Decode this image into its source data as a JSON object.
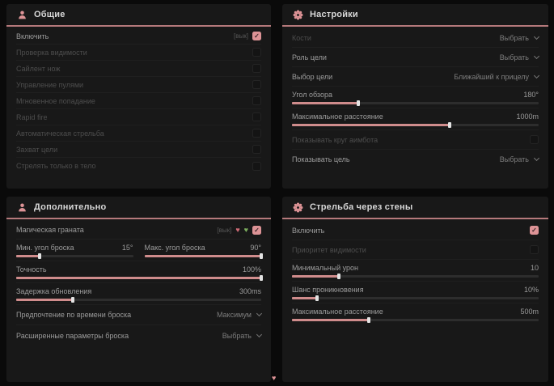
{
  "accent": "#dd9396",
  "general": {
    "title": "Общие",
    "rows": [
      {
        "label": "Включить",
        "keybind": "[вык]",
        "checked": true,
        "enabled": true
      },
      {
        "label": "Проверка видимости",
        "checked": false,
        "enabled": false
      },
      {
        "label": "Сайлент нож",
        "checked": false,
        "enabled": false
      },
      {
        "label": "Управление пулями",
        "checked": false,
        "enabled": false
      },
      {
        "label": "Мгновенное попадание",
        "checked": false,
        "enabled": false
      },
      {
        "label": "Rapid fire",
        "checked": false,
        "enabled": false
      },
      {
        "label": "Автоматическая стрельба",
        "checked": false,
        "enabled": false
      },
      {
        "label": "Захват цели",
        "checked": false,
        "enabled": false
      },
      {
        "label": "Стрелять только в тело",
        "checked": false,
        "enabled": false
      }
    ]
  },
  "settings": {
    "title": "Настройки",
    "bones": {
      "label": "Кости",
      "value": "Выбрать",
      "enabled": false
    },
    "target_role": {
      "label": "Роль цели",
      "value": "Выбрать",
      "enabled": true
    },
    "target_select": {
      "label": "Выбор цели",
      "value": "Ближайший к прицелу",
      "enabled": true
    },
    "fov": {
      "label": "Угол обзора",
      "value": "180°",
      "fill": 27
    },
    "max_distance": {
      "label": "Максимальное расстояние",
      "value": "1000m",
      "fill": 64
    },
    "show_circle": {
      "label": "Показывать круг аимбота",
      "checked": false,
      "enabled": false
    },
    "show_target": {
      "label": "Показывать цель",
      "value": "Выбрать",
      "enabled": true
    }
  },
  "additional": {
    "title": "Дополнительно",
    "magic_grenade": {
      "label": "Магическая граната",
      "keybind": "[вык]",
      "checked": true,
      "enabled": true
    },
    "min_angle": {
      "label": "Мин. угол броска",
      "value": "15°",
      "fill": 20
    },
    "max_angle": {
      "label": "Макс. угол броска",
      "value": "90°",
      "fill": 100
    },
    "accuracy": {
      "label": "Точность",
      "value": "100%",
      "fill": 100
    },
    "update_delay": {
      "label": "Задержка обновления",
      "value": "300ms",
      "fill": 23
    },
    "throw_time": {
      "label": "Предпочтение по времени броска",
      "value": "Максимум",
      "enabled": false
    },
    "advanced": {
      "label": "Расширенные параметры броска",
      "value": "Выбрать",
      "enabled": false
    }
  },
  "wallbang": {
    "title": "Стрельба через стены",
    "enable": {
      "label": "Включить",
      "checked": true,
      "enabled": true
    },
    "visibility_priority": {
      "label": "Приоритет видимости",
      "checked": false,
      "enabled": false
    },
    "min_damage": {
      "label": "Минимальный урон",
      "value": "10",
      "fill": 19
    },
    "penetration_chance": {
      "label": "Шанс проникновения",
      "value": "10%",
      "fill": 10
    },
    "max_distance": {
      "label": "Максимальное расстояние",
      "value": "500m",
      "fill": 31
    }
  },
  "watermark": {
    "glyph": "♥"
  }
}
